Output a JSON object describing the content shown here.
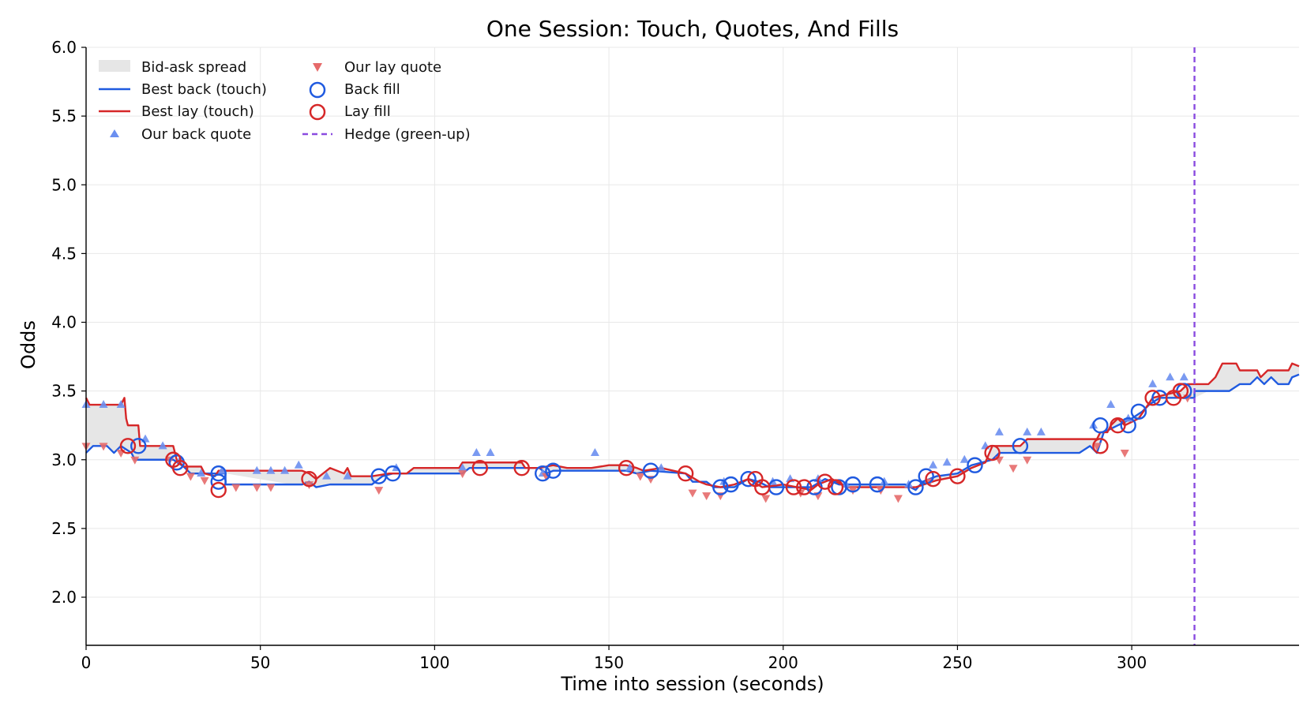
{
  "chart_data": {
    "type": "line",
    "title": "One Session: Touch, Quotes, And Fills",
    "xlabel": "Time into session (seconds)",
    "ylabel": "Odds",
    "xlim": [
      0,
      348
    ],
    "ylim": [
      1.65,
      6.0
    ],
    "x_ticks": [
      "0",
      "50",
      "100",
      "150",
      "200",
      "250",
      "300"
    ],
    "y_ticks": [
      "2.0",
      "2.5",
      "3.0",
      "3.5",
      "4.0",
      "4.5",
      "5.0",
      "5.5",
      "6.0"
    ],
    "grid": true,
    "legend_position": "top-left",
    "colors": {
      "back": "#1f5ae0",
      "lay": "#d62728",
      "back_quote": "#6b8ff0",
      "lay_quote": "#e66a6a",
      "spread": "#e6e6e6",
      "hedge": "#8a4be0",
      "grid": "#e8e8e8"
    },
    "legend": {
      "spread": "Bid-ask spread",
      "back_line": "Best back (touch)",
      "lay_line": "Best lay (touch)",
      "back_quote": "Our back quote",
      "lay_quote": "Our lay quote",
      "back_fill": "Back fill",
      "lay_fill": "Lay fill",
      "hedge": "Hedge (green-up)"
    },
    "series": [
      {
        "name": "Best back (touch)",
        "points": [
          [
            0,
            3.05
          ],
          [
            2,
            3.1
          ],
          [
            6,
            3.1
          ],
          [
            8,
            3.05
          ],
          [
            10,
            3.1
          ],
          [
            13,
            3.05
          ],
          [
            14,
            3.0
          ],
          [
            25,
            3.0
          ],
          [
            28,
            2.95
          ],
          [
            30,
            2.9
          ],
          [
            40,
            2.9
          ],
          [
            40,
            2.82
          ],
          [
            62,
            2.82
          ],
          [
            64,
            2.84
          ],
          [
            66,
            2.8
          ],
          [
            70,
            2.82
          ],
          [
            82,
            2.82
          ],
          [
            83,
            2.84
          ],
          [
            85,
            2.88
          ],
          [
            88,
            2.9
          ],
          [
            108,
            2.9
          ],
          [
            110,
            2.94
          ],
          [
            130,
            2.94
          ],
          [
            132,
            2.9
          ],
          [
            134,
            2.92
          ],
          [
            155,
            2.92
          ],
          [
            158,
            2.9
          ],
          [
            162,
            2.92
          ],
          [
            172,
            2.9
          ],
          [
            174,
            2.84
          ],
          [
            178,
            2.84
          ],
          [
            180,
            2.8
          ],
          [
            186,
            2.8
          ],
          [
            190,
            2.86
          ],
          [
            193,
            2.84
          ],
          [
            196,
            2.8
          ],
          [
            208,
            2.8
          ],
          [
            212,
            2.86
          ],
          [
            216,
            2.82
          ],
          [
            235,
            2.82
          ],
          [
            238,
            2.78
          ],
          [
            240,
            2.84
          ],
          [
            244,
            2.88
          ],
          [
            250,
            2.9
          ],
          [
            254,
            2.96
          ],
          [
            260,
            3.0
          ],
          [
            262,
            3.05
          ],
          [
            270,
            3.05
          ],
          [
            275,
            3.05
          ],
          [
            285,
            3.05
          ],
          [
            288,
            3.1
          ],
          [
            290,
            3.05
          ],
          [
            292,
            3.2
          ],
          [
            296,
            3.25
          ],
          [
            300,
            3.3
          ],
          [
            303,
            3.35
          ],
          [
            305,
            3.4
          ],
          [
            308,
            3.45
          ],
          [
            318,
            3.45
          ],
          [
            318,
            3.5
          ],
          [
            328,
            3.5
          ],
          [
            331,
            3.55
          ],
          [
            334,
            3.55
          ],
          [
            336,
            3.6
          ],
          [
            338,
            3.55
          ],
          [
            340,
            3.6
          ],
          [
            342,
            3.55
          ],
          [
            345,
            3.55
          ],
          [
            346,
            3.6
          ],
          [
            348,
            3.62
          ]
        ]
      },
      {
        "name": "Best lay (touch)",
        "points": [
          [
            0,
            3.45
          ],
          [
            1,
            3.4
          ],
          [
            10,
            3.4
          ],
          [
            11,
            3.45
          ],
          [
            11.5,
            3.3
          ],
          [
            12,
            3.25
          ],
          [
            15,
            3.25
          ],
          [
            15.5,
            3.1
          ],
          [
            25,
            3.1
          ],
          [
            26,
            3.0
          ],
          [
            28,
            2.95
          ],
          [
            33,
            2.95
          ],
          [
            34,
            2.9
          ],
          [
            37,
            2.88
          ],
          [
            38,
            2.92
          ],
          [
            59,
            2.92
          ],
          [
            62,
            2.92
          ],
          [
            64,
            2.9
          ],
          [
            66,
            2.86
          ],
          [
            70,
            2.94
          ],
          [
            74,
            2.9
          ],
          [
            75,
            2.94
          ],
          [
            76,
            2.88
          ],
          [
            82,
            2.88
          ],
          [
            87,
            2.9
          ],
          [
            92,
            2.9
          ],
          [
            94,
            2.94
          ],
          [
            107,
            2.94
          ],
          [
            108,
            2.98
          ],
          [
            125,
            2.98
          ],
          [
            126,
            2.94
          ],
          [
            130,
            2.94
          ],
          [
            134,
            2.96
          ],
          [
            138,
            2.94
          ],
          [
            145,
            2.94
          ],
          [
            150,
            2.96
          ],
          [
            155,
            2.96
          ],
          [
            158,
            2.94
          ],
          [
            160,
            2.92
          ],
          [
            165,
            2.94
          ],
          [
            172,
            2.9
          ],
          [
            176,
            2.84
          ],
          [
            178,
            2.82
          ],
          [
            182,
            2.8
          ],
          [
            186,
            2.82
          ],
          [
            190,
            2.86
          ],
          [
            194,
            2.8
          ],
          [
            200,
            2.82
          ],
          [
            208,
            2.78
          ],
          [
            210,
            2.82
          ],
          [
            214,
            2.86
          ],
          [
            218,
            2.8
          ],
          [
            235,
            2.8
          ],
          [
            238,
            2.8
          ],
          [
            244,
            2.85
          ],
          [
            250,
            2.88
          ],
          [
            254,
            2.94
          ],
          [
            258,
            2.98
          ],
          [
            260,
            3.1
          ],
          [
            268,
            3.1
          ],
          [
            270,
            3.15
          ],
          [
            290,
            3.15
          ],
          [
            291,
            3.2
          ],
          [
            293,
            3.2
          ],
          [
            294,
            3.25
          ],
          [
            296,
            3.3
          ],
          [
            298,
            3.25
          ],
          [
            302,
            3.3
          ],
          [
            306,
            3.45
          ],
          [
            314,
            3.5
          ],
          [
            316,
            3.55
          ],
          [
            318,
            3.55
          ],
          [
            322,
            3.55
          ],
          [
            324,
            3.6
          ],
          [
            326,
            3.7
          ],
          [
            330,
            3.7
          ],
          [
            331,
            3.65
          ],
          [
            336,
            3.65
          ],
          [
            337,
            3.6
          ],
          [
            339,
            3.65
          ],
          [
            345,
            3.65
          ],
          [
            346,
            3.7
          ],
          [
            348,
            3.68
          ]
        ]
      }
    ],
    "back_quotes": [
      [
        0,
        3.4
      ],
      [
        5,
        3.4
      ],
      [
        10,
        3.4
      ],
      [
        17,
        3.15
      ],
      [
        22,
        3.1
      ],
      [
        27,
        3.0
      ],
      [
        33,
        2.9
      ],
      [
        39,
        2.92
      ],
      [
        49,
        2.92
      ],
      [
        53,
        2.92
      ],
      [
        57,
        2.92
      ],
      [
        61,
        2.96
      ],
      [
        69,
        2.88
      ],
      [
        75,
        2.88
      ],
      [
        89,
        2.94
      ],
      [
        108,
        2.94
      ],
      [
        112,
        3.05
      ],
      [
        116,
        3.05
      ],
      [
        131,
        2.9
      ],
      [
        146,
        3.05
      ],
      [
        156,
        2.94
      ],
      [
        165,
        2.94
      ],
      [
        183,
        2.84
      ],
      [
        197,
        2.84
      ],
      [
        202,
        2.86
      ],
      [
        210,
        2.86
      ],
      [
        218,
        2.82
      ],
      [
        229,
        2.84
      ],
      [
        236,
        2.82
      ],
      [
        243,
        2.96
      ],
      [
        247,
        2.98
      ],
      [
        252,
        3.0
      ],
      [
        258,
        3.1
      ],
      [
        262,
        3.2
      ],
      [
        270,
        3.2
      ],
      [
        274,
        3.2
      ],
      [
        289,
        3.25
      ],
      [
        294,
        3.4
      ],
      [
        299,
        3.3
      ],
      [
        306,
        3.55
      ],
      [
        311,
        3.6
      ],
      [
        315,
        3.6
      ]
    ],
    "lay_quotes": [
      [
        0,
        3.1
      ],
      [
        5,
        3.1
      ],
      [
        10,
        3.05
      ],
      [
        14,
        3.0
      ],
      [
        24,
        3.0
      ],
      [
        30,
        2.88
      ],
      [
        34,
        2.85
      ],
      [
        43,
        2.8
      ],
      [
        49,
        2.8
      ],
      [
        53,
        2.8
      ],
      [
        64,
        2.82
      ],
      [
        84,
        2.78
      ],
      [
        108,
        2.9
      ],
      [
        132,
        2.88
      ],
      [
        159,
        2.88
      ],
      [
        162,
        2.86
      ],
      [
        174,
        2.76
      ],
      [
        178,
        2.74
      ],
      [
        182,
        2.74
      ],
      [
        195,
        2.72
      ],
      [
        205,
        2.76
      ],
      [
        210,
        2.74
      ],
      [
        220,
        2.78
      ],
      [
        228,
        2.78
      ],
      [
        233,
        2.72
      ],
      [
        242,
        2.84
      ],
      [
        262,
        3.0
      ],
      [
        266,
        2.94
      ],
      [
        270,
        3.0
      ],
      [
        290,
        3.1
      ],
      [
        298,
        3.05
      ],
      [
        316,
        3.45
      ]
    ],
    "back_fills": [
      [
        15,
        3.1
      ],
      [
        26,
        2.98
      ],
      [
        38,
        2.9
      ],
      [
        38,
        2.84
      ],
      [
        84,
        2.88
      ],
      [
        88,
        2.9
      ],
      [
        131,
        2.9
      ],
      [
        134,
        2.92
      ],
      [
        162,
        2.92
      ],
      [
        182,
        2.8
      ],
      [
        185,
        2.82
      ],
      [
        190,
        2.86
      ],
      [
        198,
        2.8
      ],
      [
        209,
        2.8
      ],
      [
        216,
        2.8
      ],
      [
        220,
        2.82
      ],
      [
        227,
        2.82
      ],
      [
        238,
        2.8
      ],
      [
        241,
        2.88
      ],
      [
        255,
        2.96
      ],
      [
        268,
        3.1
      ],
      [
        291,
        3.25
      ],
      [
        299,
        3.25
      ],
      [
        302,
        3.35
      ],
      [
        308,
        3.45
      ],
      [
        315,
        3.5
      ]
    ],
    "lay_fills": [
      [
        12,
        3.1
      ],
      [
        25,
        3.0
      ],
      [
        27,
        2.94
      ],
      [
        38,
        2.78
      ],
      [
        64,
        2.86
      ],
      [
        113,
        2.94
      ],
      [
        125,
        2.94
      ],
      [
        155,
        2.94
      ],
      [
        172,
        2.9
      ],
      [
        192,
        2.86
      ],
      [
        194,
        2.8
      ],
      [
        203,
        2.8
      ],
      [
        206,
        2.8
      ],
      [
        212,
        2.84
      ],
      [
        215,
        2.8
      ],
      [
        243,
        2.86
      ],
      [
        250,
        2.88
      ],
      [
        260,
        3.05
      ],
      [
        291,
        3.1
      ],
      [
        296,
        3.25
      ],
      [
        306,
        3.45
      ],
      [
        312,
        3.45
      ],
      [
        314,
        3.5
      ]
    ],
    "hedge_x": 318
  }
}
